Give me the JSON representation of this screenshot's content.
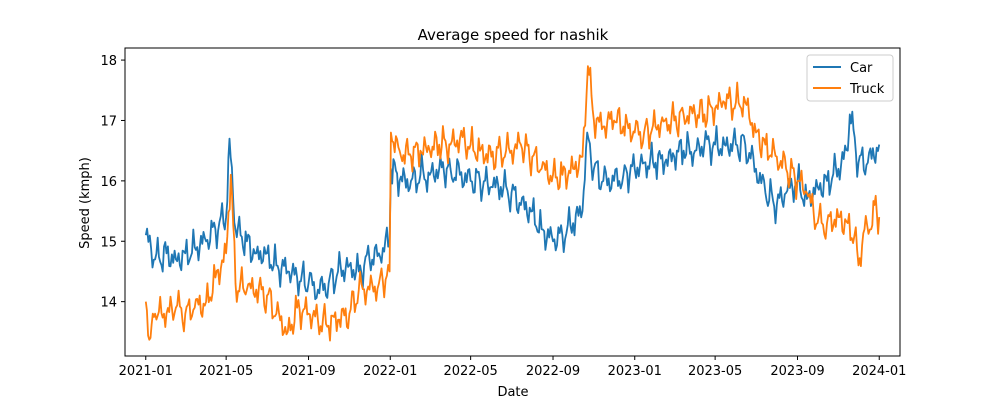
{
  "chart_data": {
    "type": "line",
    "title": "Average speed for nashik",
    "xlabel": "Date",
    "ylabel": "Speed (kmph)",
    "x_range": [
      "2020-12-01",
      "2024-02-01"
    ],
    "ylim": [
      13.1,
      18.2
    ],
    "x_ticks": [
      "2021-01",
      "2021-05",
      "2021-09",
      "2022-01",
      "2022-05",
      "2022-09",
      "2023-01",
      "2023-05",
      "2023-09",
      "2024-01"
    ],
    "y_ticks": [
      14,
      15,
      16,
      17,
      18
    ],
    "grid": false,
    "legend_position": "top-right",
    "series": [
      {
        "name": "Car",
        "color": "#1f77b4",
        "points": [
          [
            "2021-01-01",
            15.1
          ],
          [
            "2021-01-15",
            14.7
          ],
          [
            "2021-02-01",
            14.8
          ],
          [
            "2021-02-15",
            14.7
          ],
          [
            "2021-03-01",
            14.8
          ],
          [
            "2021-03-15",
            14.9
          ],
          [
            "2021-04-01",
            15.0
          ],
          [
            "2021-04-15",
            15.2
          ],
          [
            "2021-05-01",
            15.4
          ],
          [
            "2021-05-06",
            16.7
          ],
          [
            "2021-05-15",
            15.2
          ],
          [
            "2021-06-01",
            15.0
          ],
          [
            "2021-06-15",
            14.8
          ],
          [
            "2021-07-01",
            14.8
          ],
          [
            "2021-07-15",
            14.6
          ],
          [
            "2021-08-01",
            14.5
          ],
          [
            "2021-08-15",
            14.4
          ],
          [
            "2021-09-01",
            14.3
          ],
          [
            "2021-09-15",
            14.2
          ],
          [
            "2021-10-01",
            14.3
          ],
          [
            "2021-10-15",
            14.5
          ],
          [
            "2021-11-01",
            14.6
          ],
          [
            "2021-11-15",
            14.5
          ],
          [
            "2021-12-01",
            14.7
          ],
          [
            "2021-12-15",
            14.8
          ],
          [
            "2021-12-31",
            15.0
          ],
          [
            "2022-01-02",
            16.2
          ],
          [
            "2022-01-15",
            16.0
          ],
          [
            "2022-02-01",
            16.0
          ],
          [
            "2022-02-15",
            16.1
          ],
          [
            "2022-03-01",
            16.1
          ],
          [
            "2022-03-15",
            16.2
          ],
          [
            "2022-04-01",
            16.2
          ],
          [
            "2022-04-15",
            16.1
          ],
          [
            "2022-05-01",
            16.0
          ],
          [
            "2022-05-15",
            16.0
          ],
          [
            "2022-06-01",
            15.9
          ],
          [
            "2022-06-15",
            15.9
          ],
          [
            "2022-07-01",
            15.8
          ],
          [
            "2022-07-15",
            15.6
          ],
          [
            "2022-08-01",
            15.5
          ],
          [
            "2022-08-15",
            15.2
          ],
          [
            "2022-09-01",
            15.0
          ],
          [
            "2022-09-15",
            15.1
          ],
          [
            "2022-10-01",
            15.3
          ],
          [
            "2022-10-15",
            15.5
          ],
          [
            "2022-10-22",
            16.8
          ],
          [
            "2022-11-01",
            16.2
          ],
          [
            "2022-11-15",
            16.0
          ],
          [
            "2022-12-01",
            16.0
          ],
          [
            "2022-12-15",
            16.1
          ],
          [
            "2023-01-01",
            16.2
          ],
          [
            "2023-01-15",
            16.3
          ],
          [
            "2023-02-01",
            16.3
          ],
          [
            "2023-02-15",
            16.3
          ],
          [
            "2023-03-01",
            16.4
          ],
          [
            "2023-03-15",
            16.5
          ],
          [
            "2023-04-01",
            16.5
          ],
          [
            "2023-04-15",
            16.6
          ],
          [
            "2023-05-01",
            16.6
          ],
          [
            "2023-05-15",
            16.6
          ],
          [
            "2023-06-01",
            16.6
          ],
          [
            "2023-06-15",
            16.6
          ],
          [
            "2023-07-01",
            16.2
          ],
          [
            "2023-07-15",
            15.8
          ],
          [
            "2023-08-01",
            15.6
          ],
          [
            "2023-08-15",
            15.8
          ],
          [
            "2023-09-01",
            16.0
          ],
          [
            "2023-09-15",
            15.7
          ],
          [
            "2023-10-01",
            15.9
          ],
          [
            "2023-10-15",
            16.0
          ],
          [
            "2023-11-01",
            16.2
          ],
          [
            "2023-11-15",
            16.5
          ],
          [
            "2023-11-18",
            17.1
          ],
          [
            "2023-12-01",
            16.3
          ],
          [
            "2023-12-15",
            16.3
          ],
          [
            "2024-01-01",
            16.6
          ]
        ]
      },
      {
        "name": "Truck",
        "color": "#ff7f0e",
        "points": [
          [
            "2021-01-01",
            14.0
          ],
          [
            "2021-01-08",
            13.4
          ],
          [
            "2021-01-15",
            13.8
          ],
          [
            "2021-02-01",
            13.8
          ],
          [
            "2021-02-15",
            13.9
          ],
          [
            "2021-03-01",
            13.8
          ],
          [
            "2021-03-15",
            13.9
          ],
          [
            "2021-04-01",
            14.0
          ],
          [
            "2021-04-15",
            14.4
          ],
          [
            "2021-05-01",
            14.8
          ],
          [
            "2021-05-08",
            16.1
          ],
          [
            "2021-05-15",
            14.3
          ],
          [
            "2021-06-01",
            14.2
          ],
          [
            "2021-06-15",
            14.2
          ],
          [
            "2021-07-01",
            14.1
          ],
          [
            "2021-07-15",
            13.8
          ],
          [
            "2021-08-01",
            13.5
          ],
          [
            "2021-08-15",
            13.9
          ],
          [
            "2021-09-01",
            13.8
          ],
          [
            "2021-09-15",
            13.7
          ],
          [
            "2021-10-01",
            13.6
          ],
          [
            "2021-10-15",
            13.7
          ],
          [
            "2021-11-01",
            13.8
          ],
          [
            "2021-11-15",
            14.2
          ],
          [
            "2021-12-01",
            14.2
          ],
          [
            "2021-12-15",
            14.3
          ],
          [
            "2021-12-31",
            14.5
          ],
          [
            "2022-01-02",
            16.8
          ],
          [
            "2022-01-15",
            16.5
          ],
          [
            "2022-02-01",
            16.4
          ],
          [
            "2022-02-15",
            16.5
          ],
          [
            "2022-03-01",
            16.5
          ],
          [
            "2022-03-15",
            16.6
          ],
          [
            "2022-04-01",
            16.6
          ],
          [
            "2022-04-15",
            16.7
          ],
          [
            "2022-05-01",
            16.6
          ],
          [
            "2022-05-15",
            16.5
          ],
          [
            "2022-06-01",
            16.4
          ],
          [
            "2022-06-15",
            16.5
          ],
          [
            "2022-07-01",
            16.5
          ],
          [
            "2022-07-15",
            16.6
          ],
          [
            "2022-08-01",
            16.4
          ],
          [
            "2022-08-15",
            16.2
          ],
          [
            "2022-09-01",
            16.1
          ],
          [
            "2022-09-15",
            16.1
          ],
          [
            "2022-10-01",
            16.2
          ],
          [
            "2022-10-15",
            16.4
          ],
          [
            "2022-10-23",
            17.9
          ],
          [
            "2022-11-01",
            17.0
          ],
          [
            "2022-11-15",
            16.9
          ],
          [
            "2022-12-01",
            17.0
          ],
          [
            "2022-12-15",
            16.9
          ],
          [
            "2023-01-01",
            16.8
          ],
          [
            "2023-01-15",
            16.8
          ],
          [
            "2023-02-01",
            16.9
          ],
          [
            "2023-02-15",
            17.0
          ],
          [
            "2023-03-01",
            17.0
          ],
          [
            "2023-03-15",
            17.1
          ],
          [
            "2023-04-01",
            17.1
          ],
          [
            "2023-04-15",
            17.1
          ],
          [
            "2023-05-01",
            17.2
          ],
          [
            "2023-05-15",
            17.3
          ],
          [
            "2023-06-01",
            17.3
          ],
          [
            "2023-06-15",
            17.3
          ],
          [
            "2023-07-01",
            16.8
          ],
          [
            "2023-07-15",
            16.6
          ],
          [
            "2023-08-01",
            16.4
          ],
          [
            "2023-08-15",
            16.2
          ],
          [
            "2023-09-01",
            16.0
          ],
          [
            "2023-09-15",
            15.8
          ],
          [
            "2023-10-01",
            15.3
          ],
          [
            "2023-10-15",
            15.3
          ],
          [
            "2023-11-01",
            15.4
          ],
          [
            "2023-11-15",
            15.3
          ],
          [
            "2023-11-25",
            15.1
          ],
          [
            "2023-12-01",
            14.6
          ],
          [
            "2023-12-10",
            15.2
          ],
          [
            "2023-12-20",
            15.2
          ],
          [
            "2023-12-25",
            15.6
          ],
          [
            "2024-01-01",
            15.4
          ]
        ]
      }
    ]
  }
}
